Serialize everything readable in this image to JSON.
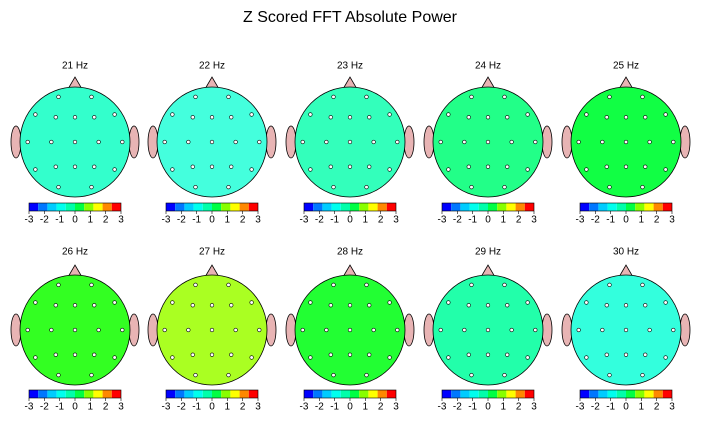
{
  "chart_data": {
    "type": "topomap",
    "title": "Z Scored FFT Absolute Power",
    "panels": [
      {
        "title": "21 Hz",
        "color": "#33ffcc"
      },
      {
        "title": "22 Hz",
        "color": "#44ffdd"
      },
      {
        "title": "23 Hz",
        "color": "#33ffbb"
      },
      {
        "title": "24 Hz",
        "color": "#22ff88"
      },
      {
        "title": "25 Hz",
        "color": "#11ff44"
      },
      {
        "title": "26 Hz",
        "color": "#33ff22"
      },
      {
        "title": "27 Hz",
        "color": "#aaff22"
      },
      {
        "title": "28 Hz",
        "color": "#22ff33"
      },
      {
        "title": "29 Hz",
        "color": "#22ffaa"
      },
      {
        "title": "30 Hz",
        "color": "#33ffdd"
      }
    ],
    "colorbar": {
      "colors": [
        "#0000ff",
        "#0077ff",
        "#00ccff",
        "#00ffee",
        "#00ffaa",
        "#00ff44",
        "#88ff00",
        "#ffff00",
        "#ff8800",
        "#ff0000"
      ],
      "lim": [
        -3,
        3
      ],
      "ticks": [
        -3,
        -2,
        -1,
        0,
        1,
        2,
        3
      ]
    }
  }
}
